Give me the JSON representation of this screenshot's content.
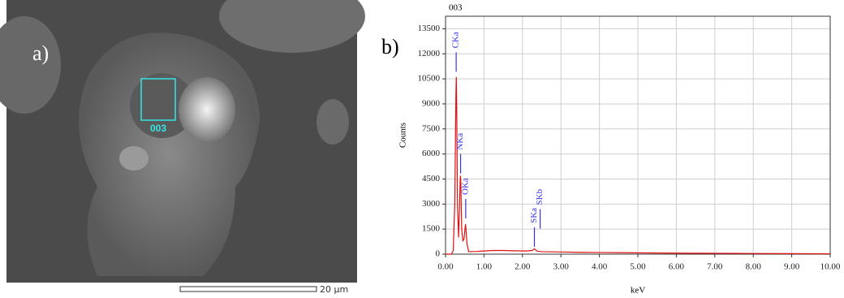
{
  "panel_a": {
    "label": "a)",
    "box_label": "003",
    "scale_bar": "20 μm"
  },
  "panel_b_label": "b)",
  "chart_data": {
    "type": "line",
    "title": "003",
    "x_label": "keV",
    "y_label": "Counts",
    "x": [
      0,
      0.1,
      0.15,
      0.2,
      0.24,
      0.27,
      0.28,
      0.29,
      0.31,
      0.34,
      0.36,
      0.38,
      0.39,
      0.4,
      0.42,
      0.45,
      0.48,
      0.51,
      0.52,
      0.53,
      0.56,
      0.6,
      0.8,
      1.0,
      1.2,
      1.5,
      1.8,
      2.1,
      2.25,
      2.31,
      2.38,
      2.5,
      3,
      3.5,
      4,
      5,
      6,
      7,
      8,
      9,
      10
    ],
    "series": [
      {
        "color": "#e01010",
        "values": [
          0,
          0,
          0,
          200,
          3000,
          9500,
          10600,
          9000,
          3000,
          1000,
          2500,
          4400,
          4700,
          4000,
          1500,
          800,
          900,
          1600,
          1800,
          1500,
          600,
          150,
          160,
          190,
          220,
          220,
          200,
          190,
          220,
          320,
          180,
          150,
          130,
          110,
          100,
          80,
          60,
          50,
          40,
          30,
          20
        ]
      }
    ],
    "annotations": [
      {
        "text": "CKa",
        "x": 0.277,
        "y": 12090
      },
      {
        "text": "NKa",
        "x": 0.392,
        "y": 6000
      },
      {
        "text": "OKa",
        "x": 0.525,
        "y": 3310
      },
      {
        "text": "SKa",
        "x": 2.31,
        "y": 1610
      },
      {
        "text": "SKb",
        "x": 2.46,
        "y": 2700
      }
    ],
    "annotation_color": "#3333ee",
    "xlim": [
      0,
      10
    ],
    "ylim": [
      0,
      14250
    ],
    "xticks": [
      {
        "value": 0,
        "label": "0.00"
      },
      {
        "value": 1,
        "label": "1.00"
      },
      {
        "value": 2,
        "label": "2.00"
      },
      {
        "value": 3,
        "label": "3.00"
      },
      {
        "value": 4,
        "label": "4.00"
      },
      {
        "value": 5,
        "label": "5.00"
      },
      {
        "value": 6,
        "label": "6.00"
      },
      {
        "value": 7,
        "label": "7.00"
      },
      {
        "value": 8,
        "label": "8.00"
      },
      {
        "value": 9,
        "label": "9.00"
      },
      {
        "value": 10,
        "label": "10.00"
      }
    ],
    "yticks": [
      0,
      1500,
      3000,
      4500,
      6000,
      7500,
      9000,
      10500,
      12000,
      13500
    ],
    "grid": true
  }
}
